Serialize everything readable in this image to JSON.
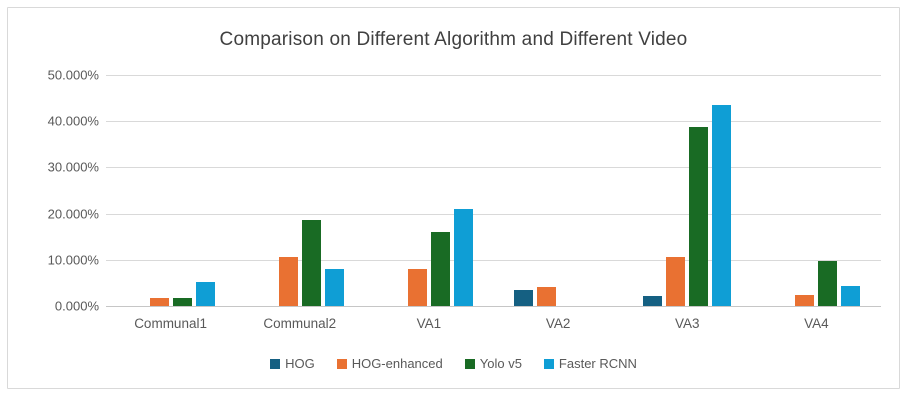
{
  "chart_data": {
    "type": "bar",
    "title": "Comparison on Different Algorithm and Different Video",
    "categories": [
      "Communal1",
      "Communal2",
      "VA1",
      "VA2",
      "VA3",
      "VA4"
    ],
    "series": [
      {
        "name": "HOG",
        "color": "#156082",
        "values": [
          0,
          0,
          0,
          3.4,
          2.2,
          0
        ]
      },
      {
        "name": "HOG-enhanced",
        "color": "#E97132",
        "values": [
          1.8,
          10.7,
          8.0,
          4.1,
          10.7,
          2.4
        ]
      },
      {
        "name": "Yolo v5",
        "color": "#196B24",
        "values": [
          1.7,
          18.6,
          16.0,
          0,
          38.8,
          9.8
        ]
      },
      {
        "name": "Faster RCNN",
        "color": "#0F9ED5",
        "values": [
          5.3,
          8.1,
          21.0,
          0,
          43.5,
          4.4
        ]
      }
    ],
    "y_tick_labels": [
      "50.000%",
      "40.000%",
      "30.000%",
      "20.000%",
      "10.000%",
      "0.000%"
    ],
    "ylim": [
      0,
      50
    ],
    "grid": true,
    "legend_position": "bottom",
    "colors": {
      "title_text": "#404040",
      "axis_text": "#595959",
      "gridline": "#d9d9d9",
      "frame_border": "#d9d9d9",
      "background": "#ffffff"
    }
  }
}
